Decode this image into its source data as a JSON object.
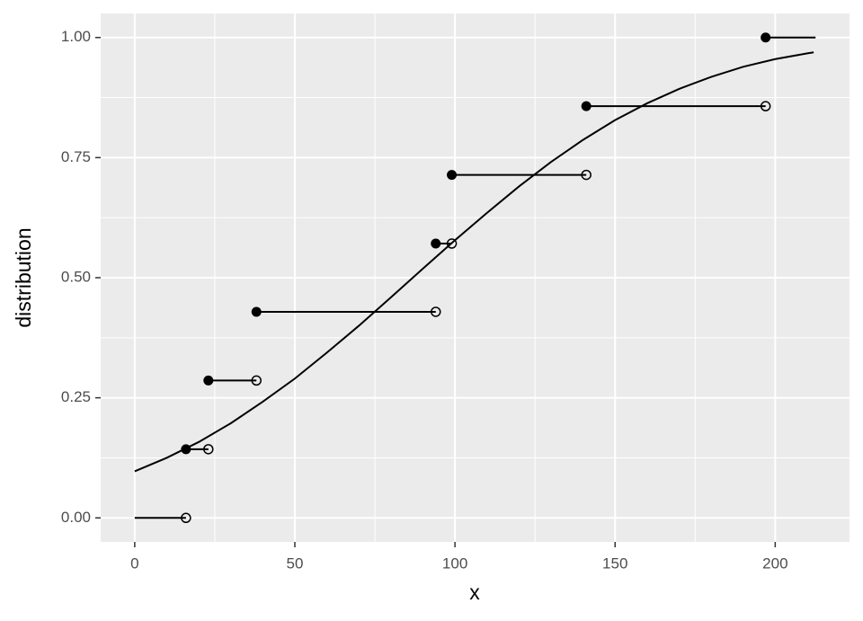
{
  "chart_data": {
    "type": "step",
    "xlabel": "x",
    "ylabel": "distribution",
    "xlim": [
      -10.63,
      223.2
    ],
    "ylim": [
      -0.05,
      1.05
    ],
    "xticks": [
      0,
      50,
      100,
      150,
      200
    ],
    "yticks": [
      {
        "value": 0,
        "label": "0.00"
      },
      {
        "value": 0.25,
        "label": "0.25"
      },
      {
        "value": 0.5,
        "label": "0.50"
      },
      {
        "value": 0.75,
        "label": "0.75"
      },
      {
        "value": 1,
        "label": "1.00"
      }
    ],
    "grid": true,
    "color": "#000000",
    "steps": {
      "x_start": [
        0,
        16,
        23,
        38,
        94,
        99,
        141,
        197
      ],
      "x_end": [
        16,
        23,
        38,
        94,
        99,
        141,
        197,
        212.6
      ],
      "y": [
        0,
        0.143,
        0.286,
        0.429,
        0.571,
        0.714,
        0.857,
        1
      ]
    },
    "curve": {
      "x": [
        0,
        10,
        20,
        30,
        40,
        50,
        60,
        70,
        80,
        90,
        100,
        110,
        120,
        130,
        140,
        150,
        160,
        170,
        180,
        190,
        200,
        210,
        212
      ],
      "y": [
        0.097,
        0.125,
        0.158,
        0.197,
        0.242,
        0.29,
        0.344,
        0.4,
        0.459,
        0.519,
        0.578,
        0.635,
        0.69,
        0.741,
        0.787,
        0.828,
        0.863,
        0.893,
        0.918,
        0.939,
        0.955,
        0.967,
        0.969
      ]
    }
  }
}
